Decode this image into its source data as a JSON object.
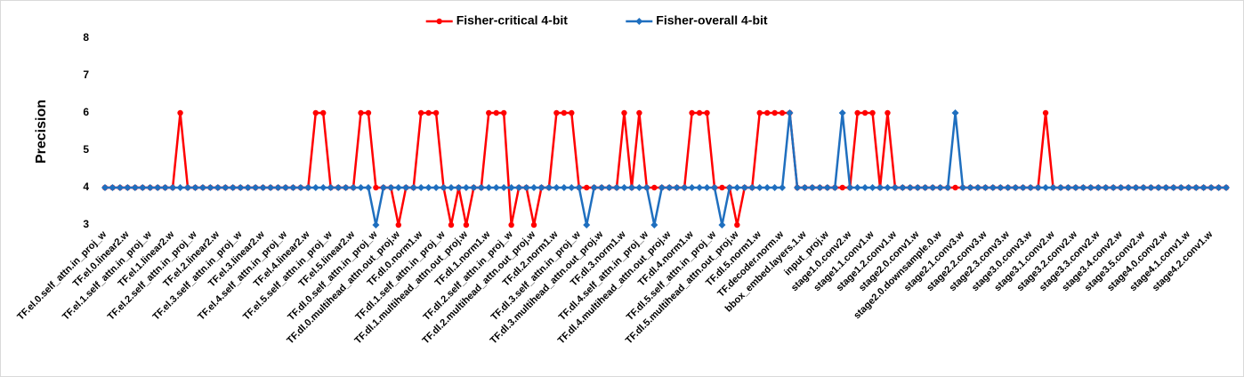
{
  "chart_data": {
    "type": "line",
    "y_label": "Precision",
    "ylim": [
      3,
      8
    ],
    "yticks": [
      3,
      4,
      5,
      6,
      7,
      8
    ],
    "legend": "top",
    "categories": [
      "TF.el.0.self_attn.in_proj_w",
      null,
      null,
      "TF.el.0.linear2.w",
      null,
      null,
      "TF.el.1.self_attn.in_proj_w",
      null,
      null,
      "TF.el.1.linear2.w",
      null,
      null,
      "TF.el.2.self_attn.in_proj_w",
      null,
      null,
      "TF.el.2.linear2.w",
      null,
      null,
      "TF.el.3.self_attn.in_proj_w",
      null,
      null,
      "TF.el.3.linear2.w",
      null,
      null,
      "TF.el.4.self_attn.in_proj_w",
      null,
      null,
      "TF.el.4.linear2.w",
      null,
      null,
      "TF.el.5.self_attn.in_proj_w",
      null,
      null,
      "TF.el.5.linear2.w",
      null,
      null,
      "TF.dl.0.self_attn.in_proj_w",
      null,
      null,
      "TF.dl.0.multihead_attn.out_proj.w",
      null,
      null,
      "TF.dl.0.norm1.w",
      null,
      null,
      "TF.dl.1.self_attn.in_proj_w",
      null,
      null,
      "TF.dl.1.multihead_attn.out_proj.w",
      null,
      null,
      "TF.dl.1.norm1.w",
      null,
      null,
      "TF.dl.2.self_attn.in_proj_w",
      null,
      null,
      "TF.dl.2.multihead_attn.out_proj.w",
      null,
      null,
      "TF.dl.2.norm1.w",
      null,
      null,
      "TF.dl.3.self_attn.in_proj_w",
      null,
      null,
      "TF.dl.3.multihead_attn.out_proj.w",
      null,
      null,
      "TF.dl.3.norm1.w",
      null,
      null,
      "TF.dl.4.self_attn.in_proj_w",
      null,
      null,
      "TF.dl.4.multihead_attn.out_proj.w",
      null,
      null,
      "TF.dl.4.norm1.w",
      null,
      null,
      "TF.dl.5.self_attn.in_proj_w",
      null,
      null,
      "TF.dl.5.multihead_attn.out_proj.w",
      null,
      null,
      "TF.dl.5.norm1.w",
      null,
      null,
      "TF.decoder.norm.w",
      null,
      null,
      "bbox_embed.layers.1.w",
      null,
      null,
      "input_proj.w",
      null,
      null,
      "stage1.0.conv2.w",
      null,
      null,
      "stage1.1.conv1.w",
      null,
      null,
      "stage1.2.conv1.w",
      null,
      null,
      "stage2.0.conv1.w",
      null,
      null,
      "stage2.0.downsample.0.w",
      null,
      null,
      "stage2.1.conv3.w",
      null,
      null,
      "stage2.2.conv3.w",
      null,
      null,
      "stage2.3.conv3.w",
      null,
      null,
      "stage3.0.conv3.w",
      null,
      null,
      "stage3.1.conv2.w",
      null,
      null,
      "stage3.2.conv2.w",
      null,
      null,
      "stage3.3.conv2.w",
      null,
      null,
      "stage3.4.conv2.w",
      null,
      null,
      "stage3.5.conv2.w",
      null,
      null,
      "stage4.0.conv2.w",
      null,
      null,
      "stage4.1.conv1.w",
      null,
      null,
      "stage4.2.conv1.w",
      null,
      null
    ],
    "series": [
      {
        "name": "Fisher-critical 4-bit",
        "color": "#ff0000",
        "marker": "circle",
        "values": [
          4,
          4,
          4,
          4,
          4,
          4,
          4,
          4,
          4,
          4,
          6,
          4,
          4,
          4,
          4,
          4,
          4,
          4,
          4,
          4,
          4,
          4,
          4,
          4,
          4,
          4,
          4,
          4,
          6,
          6,
          4,
          4,
          4,
          4,
          6,
          6,
          4,
          4,
          4,
          3,
          4,
          4,
          6,
          6,
          6,
          4,
          3,
          4,
          3,
          4,
          4,
          6,
          6,
          6,
          3,
          4,
          4,
          3,
          4,
          4,
          6,
          6,
          6,
          4,
          4,
          4,
          4,
          4,
          4,
          6,
          4,
          6,
          4,
          4,
          4,
          4,
          4,
          4,
          6,
          6,
          6,
          4,
          4,
          4,
          3,
          4,
          4,
          6,
          6,
          6,
          6,
          6,
          4,
          4,
          4,
          4,
          4,
          4,
          4,
          4,
          6,
          6,
          6,
          4,
          6,
          4,
          4,
          4,
          4,
          4,
          4,
          4,
          4,
          4,
          4,
          4,
          4,
          4,
          4,
          4,
          4,
          4,
          4,
          4,
          4,
          6,
          4,
          4,
          4,
          4,
          4,
          4,
          4,
          4,
          4,
          4,
          4,
          4,
          4,
          4,
          4,
          4,
          4,
          4,
          4,
          4,
          4,
          4,
          4,
          4
        ]
      },
      {
        "name": "Fisher-overall 4-bit",
        "color": "#1f6fbf",
        "marker": "diamond",
        "values": [
          4,
          4,
          4,
          4,
          4,
          4,
          4,
          4,
          4,
          4,
          4,
          4,
          4,
          4,
          4,
          4,
          4,
          4,
          4,
          4,
          4,
          4,
          4,
          4,
          4,
          4,
          4,
          4,
          4,
          4,
          4,
          4,
          4,
          4,
          4,
          4,
          3,
          4,
          4,
          4,
          4,
          4,
          4,
          4,
          4,
          4,
          4,
          4,
          4,
          4,
          4,
          4,
          4,
          4,
          4,
          4,
          4,
          4,
          4,
          4,
          4,
          4,
          4,
          4,
          3,
          4,
          4,
          4,
          4,
          4,
          4,
          4,
          4,
          3,
          4,
          4,
          4,
          4,
          4,
          4,
          4,
          4,
          3,
          4,
          4,
          4,
          4,
          4,
          4,
          4,
          4,
          6,
          4,
          4,
          4,
          4,
          4,
          4,
          6,
          4,
          4,
          4,
          4,
          4,
          4,
          4,
          4,
          4,
          4,
          4,
          4,
          4,
          4,
          6,
          4,
          4,
          4,
          4,
          4,
          4,
          4,
          4,
          4,
          4,
          4,
          4,
          4,
          4,
          4,
          4,
          4,
          4,
          4,
          4,
          4,
          4,
          4,
          4,
          4,
          4,
          4,
          4,
          4,
          4,
          4,
          4,
          4,
          4,
          4,
          4
        ]
      }
    ]
  }
}
